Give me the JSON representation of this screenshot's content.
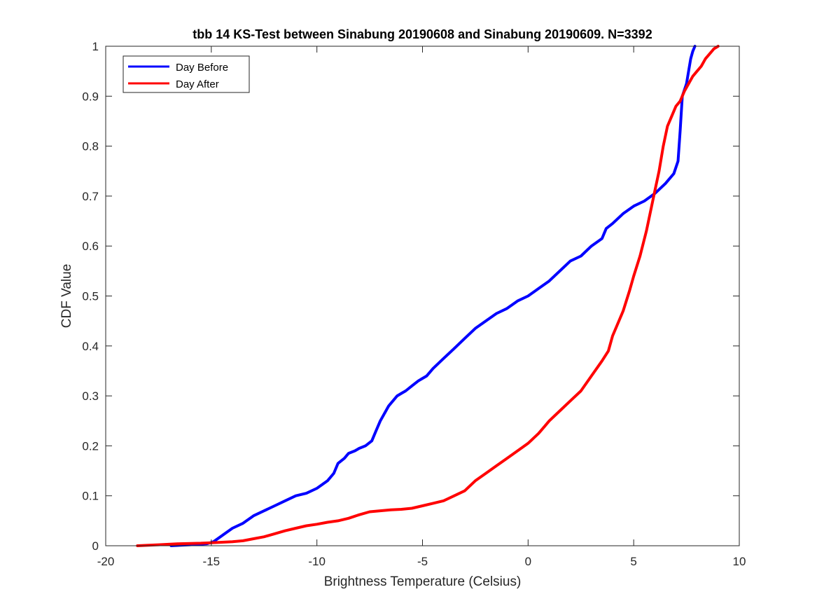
{
  "chart_data": {
    "type": "line",
    "title": "tbb 14 KS-Test between Sinabung 20190608 and Sinabung 20190609. N=3392",
    "xlabel": "Brightness Temperature (Celsius)",
    "ylabel": "CDF Value",
    "xlim": [
      -20,
      10
    ],
    "ylim": [
      0,
      1
    ],
    "xticks": [
      -20,
      -15,
      -10,
      -5,
      0,
      5,
      10
    ],
    "xtick_labels": [
      "-20",
      "-15",
      "-10",
      "-5",
      "0",
      "5",
      "10"
    ],
    "yticks": [
      0,
      0.1,
      0.2,
      0.3,
      0.4,
      0.5,
      0.6,
      0.7,
      0.8,
      0.9,
      1
    ],
    "ytick_labels": [
      "0",
      "0.1",
      "0.2",
      "0.3",
      "0.4",
      "0.5",
      "0.6",
      "0.7",
      "0.8",
      "0.9",
      "1"
    ],
    "grid": false,
    "legend": {
      "location": "top-left"
    },
    "series": [
      {
        "name": "Day Before",
        "color": "#0000ff",
        "x": [
          -16.9,
          -16.0,
          -15.2,
          -14.9,
          -14.5,
          -14.0,
          -13.5,
          -13.0,
          -12.5,
          -12.0,
          -11.5,
          -11.0,
          -10.5,
          -10.0,
          -9.5,
          -9.2,
          -9.0,
          -8.7,
          -8.5,
          -8.2,
          -8.0,
          -7.7,
          -7.4,
          -7.2,
          -7.0,
          -6.8,
          -6.6,
          -6.4,
          -6.2,
          -6.0,
          -5.8,
          -5.5,
          -5.2,
          -5.0,
          -4.8,
          -4.5,
          -4.0,
          -3.5,
          -3.0,
          -2.5,
          -2.0,
          -1.5,
          -1.0,
          -0.5,
          0.0,
          0.5,
          1.0,
          1.5,
          2.0,
          2.5,
          3.0,
          3.5,
          3.7,
          4.0,
          4.5,
          5.0,
          5.5,
          6.0,
          6.5,
          6.9,
          7.1,
          7.2,
          7.3,
          7.5,
          7.6,
          7.7,
          7.8,
          7.9
        ],
        "y": [
          0.0,
          0.002,
          0.004,
          0.008,
          0.02,
          0.035,
          0.045,
          0.06,
          0.07,
          0.08,
          0.09,
          0.1,
          0.105,
          0.115,
          0.13,
          0.145,
          0.165,
          0.175,
          0.185,
          0.19,
          0.195,
          0.2,
          0.21,
          0.23,
          0.25,
          0.265,
          0.28,
          0.29,
          0.3,
          0.305,
          0.31,
          0.32,
          0.33,
          0.335,
          0.34,
          0.355,
          0.375,
          0.395,
          0.415,
          0.435,
          0.45,
          0.465,
          0.475,
          0.49,
          0.5,
          0.515,
          0.53,
          0.55,
          0.57,
          0.58,
          0.6,
          0.615,
          0.635,
          0.645,
          0.665,
          0.68,
          0.69,
          0.705,
          0.725,
          0.745,
          0.77,
          0.83,
          0.9,
          0.925,
          0.95,
          0.975,
          0.99,
          1.0
        ]
      },
      {
        "name": "Day After",
        "color": "#ff0000",
        "x": [
          -18.5,
          -17.5,
          -16.5,
          -15.5,
          -15.0,
          -14.5,
          -14.0,
          -13.5,
          -13.0,
          -12.5,
          -12.0,
          -11.5,
          -11.0,
          -10.5,
          -10.0,
          -9.5,
          -9.0,
          -8.5,
          -8.0,
          -7.5,
          -7.0,
          -6.5,
          -6.0,
          -5.5,
          -5.0,
          -4.5,
          -4.0,
          -3.5,
          -3.0,
          -2.5,
          -2.0,
          -1.5,
          -1.0,
          -0.5,
          0.0,
          0.5,
          0.8,
          1.0,
          1.5,
          2.0,
          2.5,
          3.0,
          3.5,
          3.8,
          4.0,
          4.5,
          4.8,
          5.0,
          5.3,
          5.6,
          5.8,
          6.0,
          6.2,
          6.4,
          6.6,
          6.8,
          7.0,
          7.2,
          7.4,
          7.6,
          7.8,
          8.0,
          8.2,
          8.4,
          8.6,
          8.8,
          9.0
        ],
        "y": [
          0.0,
          0.002,
          0.004,
          0.005,
          0.006,
          0.007,
          0.008,
          0.01,
          0.014,
          0.018,
          0.024,
          0.03,
          0.035,
          0.04,
          0.043,
          0.047,
          0.05,
          0.055,
          0.062,
          0.068,
          0.07,
          0.072,
          0.073,
          0.075,
          0.08,
          0.085,
          0.09,
          0.1,
          0.11,
          0.13,
          0.145,
          0.16,
          0.175,
          0.19,
          0.205,
          0.225,
          0.24,
          0.25,
          0.27,
          0.29,
          0.31,
          0.34,
          0.37,
          0.39,
          0.42,
          0.47,
          0.51,
          0.54,
          0.58,
          0.63,
          0.67,
          0.71,
          0.75,
          0.8,
          0.84,
          0.86,
          0.88,
          0.89,
          0.91,
          0.925,
          0.94,
          0.95,
          0.96,
          0.975,
          0.985,
          0.995,
          1.0
        ]
      }
    ]
  }
}
